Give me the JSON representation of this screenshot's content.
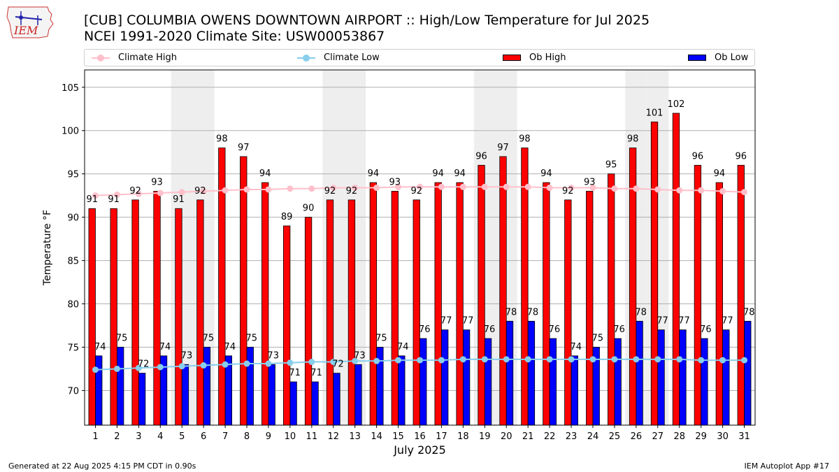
{
  "header": {
    "logo_text": "IEM",
    "title_line1": "[CUB] COLUMBIA OWENS DOWNTOWN AIRPORT :: High/Low Temperature for Jul 2025",
    "title_line2": "NCEI 1991-2020 Climate Site: USW00053867"
  },
  "legend": {
    "climate_high": "Climate High",
    "climate_low": "Climate Low",
    "ob_high": "Ob High",
    "ob_low": "Ob Low"
  },
  "footer": {
    "generated": "Generated at 22 Aug 2025 4:15 PM CDT in 0.90s",
    "app": "IEM Autoplot App #17"
  },
  "colors": {
    "ob_high": "#ff0000",
    "ob_low": "#0000ff",
    "climate_high": "#ffc0cb",
    "climate_low": "#87ceeb",
    "weekend_shade": "#eeeeee"
  },
  "chart_data": {
    "type": "bar",
    "xlabel": "July 2025",
    "ylabel": "Temperature °F",
    "ylim": [
      66,
      107
    ],
    "yticks": [
      70,
      75,
      80,
      85,
      90,
      95,
      100,
      105
    ],
    "grid": true,
    "legend_position": "top",
    "categories": [
      "1",
      "2",
      "3",
      "4",
      "5",
      "6",
      "7",
      "8",
      "9",
      "10",
      "11",
      "12",
      "13",
      "14",
      "15",
      "16",
      "17",
      "18",
      "19",
      "20",
      "21",
      "22",
      "23",
      "24",
      "25",
      "26",
      "27",
      "28",
      "29",
      "30",
      "31"
    ],
    "shaded_days": [
      5,
      6,
      12,
      13,
      19,
      20,
      26,
      27
    ],
    "series": [
      {
        "name": "Ob High",
        "type": "bar",
        "values": [
          91,
          91,
          92,
          93,
          91,
          92,
          98,
          97,
          94,
          89,
          90,
          92,
          92,
          94,
          93,
          92,
          94,
          94,
          96,
          97,
          98,
          94,
          92,
          93,
          95,
          98,
          101,
          102,
          96,
          94,
          96
        ]
      },
      {
        "name": "Ob Low",
        "type": "bar",
        "values": [
          74,
          75,
          72,
          74,
          73,
          75,
          74,
          75,
          73,
          71,
          71,
          72,
          73,
          75,
          74,
          76,
          77,
          77,
          76,
          78,
          78,
          76,
          74,
          75,
          76,
          78,
          77,
          77,
          76,
          77,
          78
        ]
      },
      {
        "name": "Climate High",
        "type": "line",
        "values": [
          92.5,
          92.6,
          92.7,
          92.8,
          92.9,
          93.0,
          93.1,
          93.2,
          93.2,
          93.3,
          93.3,
          93.4,
          93.4,
          93.4,
          93.5,
          93.5,
          93.5,
          93.5,
          93.5,
          93.5,
          93.5,
          93.4,
          93.4,
          93.4,
          93.3,
          93.3,
          93.2,
          93.1,
          93.1,
          93.0,
          92.9
        ]
      },
      {
        "name": "Climate Low",
        "type": "line",
        "values": [
          72.4,
          72.5,
          72.6,
          72.7,
          72.8,
          72.9,
          73.0,
          73.1,
          73.1,
          73.2,
          73.3,
          73.3,
          73.4,
          73.4,
          73.5,
          73.5,
          73.5,
          73.6,
          73.6,
          73.6,
          73.6,
          73.6,
          73.6,
          73.6,
          73.6,
          73.6,
          73.6,
          73.6,
          73.5,
          73.5,
          73.5
        ]
      }
    ]
  }
}
